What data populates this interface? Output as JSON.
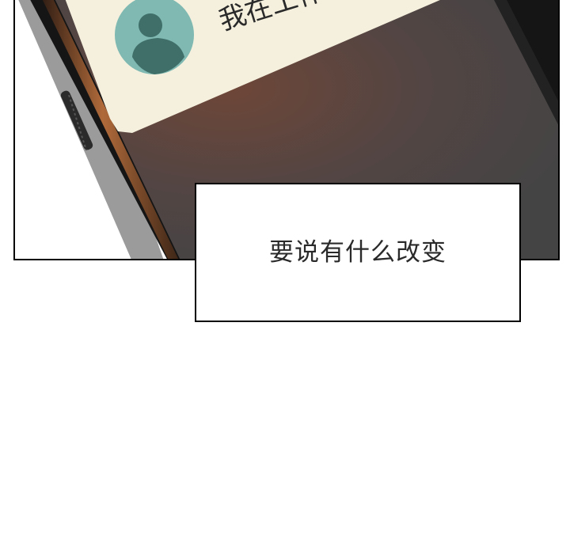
{
  "comic_panel": {
    "notification_text": "我在工作",
    "caption_text": "要说有什么改变"
  },
  "colors": {
    "screen_dark": "#4a4746",
    "screen_glow": "#6e4638",
    "card_bg": "#f5f0dd",
    "avatar_bg": "#7fb9b2",
    "avatar_figure": "#3f6f68",
    "bezel": "#1c1c1c",
    "frame_edge": "#9a5a32"
  }
}
